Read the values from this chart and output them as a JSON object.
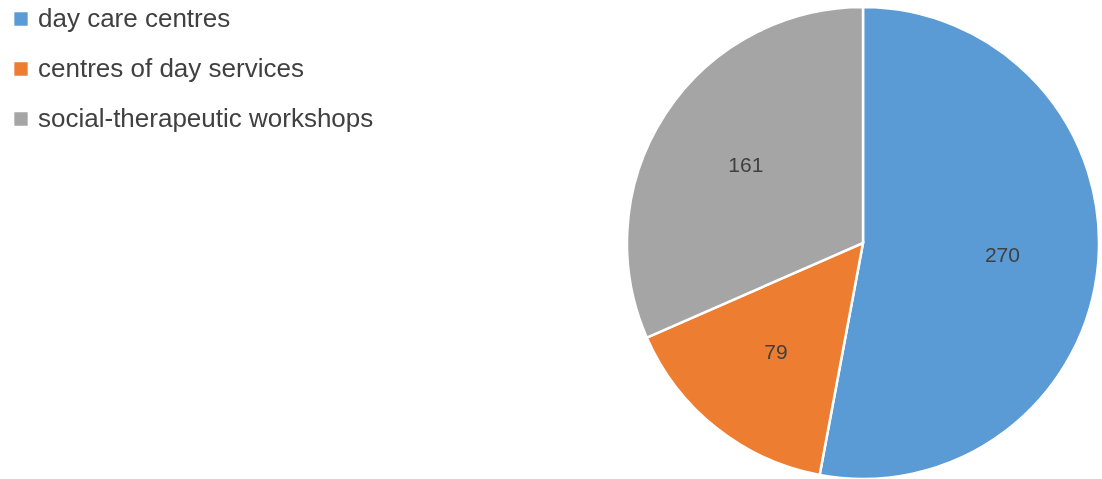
{
  "chart_data": {
    "type": "pie",
    "categories": [
      "day care centres",
      "centres of day services",
      "social-therapeutic workshops"
    ],
    "values": [
      270,
      79,
      161
    ],
    "colors": [
      "#5b9bd5",
      "#ed7d31",
      "#a5a5a5"
    ],
    "data_labels": true,
    "legend": "left"
  }
}
